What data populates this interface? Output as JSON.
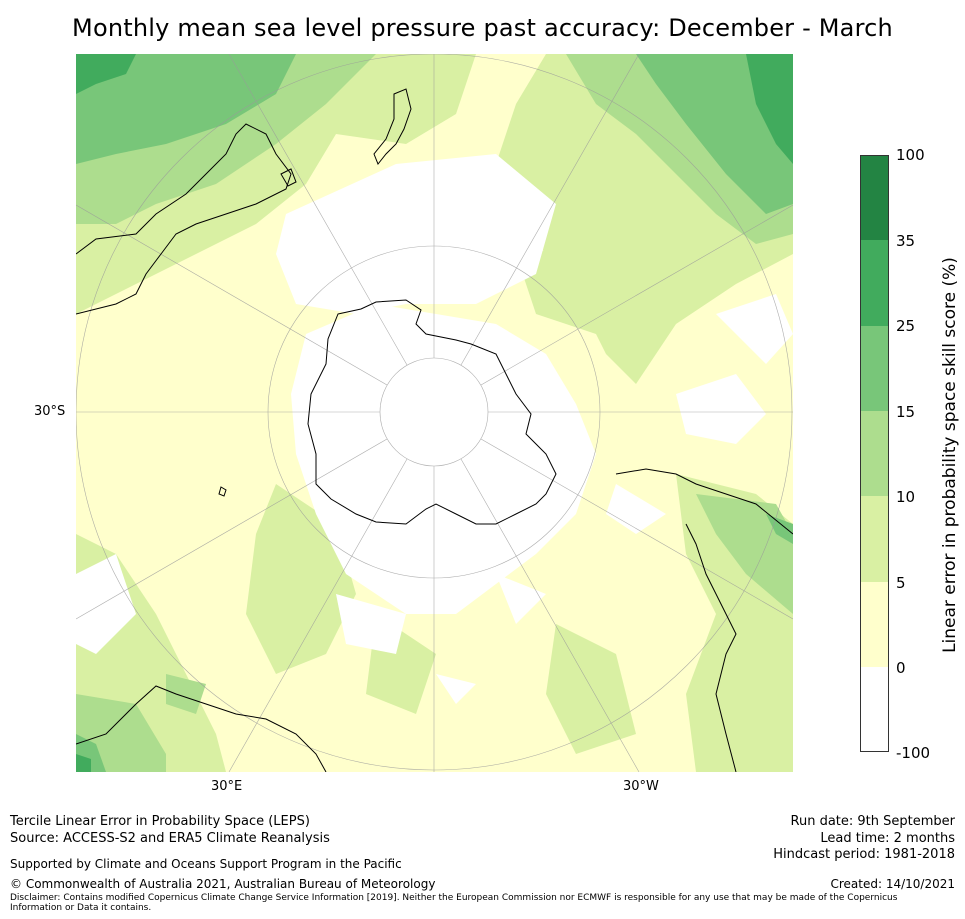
{
  "title": "Monthly mean sea level pressure past accuracy: December - March",
  "map": {
    "projection": "south-polar-stereographic",
    "lat_label": "30°S",
    "lon_labels": {
      "east": "30°E",
      "west": "30°W"
    },
    "colors": {
      "band_neg": "#ffffff",
      "band_0_5": "#ffffcc",
      "band_5_10": "#d9f0a3",
      "band_10_15": "#addd8e",
      "band_15_25": "#78c679",
      "band_25_35": "#41ab5d",
      "band_35_100": "#238443"
    }
  },
  "colorbar": {
    "title": "Linear error in probability space skill score (%)",
    "ticks": [
      "100",
      "35",
      "25",
      "15",
      "10",
      "5",
      "0",
      "-100"
    ],
    "bands_bottom_to_top": [
      {
        "range": "-100 to 0",
        "color": "#ffffff"
      },
      {
        "range": "0 to 5",
        "color": "#ffffcc"
      },
      {
        "range": "5 to 10",
        "color": "#d9f0a3"
      },
      {
        "range": "10 to 15",
        "color": "#addd8e"
      },
      {
        "range": "15 to 25",
        "color": "#78c679"
      },
      {
        "range": "25 to 35",
        "color": "#41ab5d"
      },
      {
        "range": "35 to 100",
        "color": "#238443"
      }
    ]
  },
  "footer": {
    "method": "Tercile Linear Error in Probability Space (LEPS)",
    "source": "Source: ACCESS-S2 and ERA5 Climate Reanalysis",
    "support": "Supported by Climate and Oceans Support Program in the Pacific",
    "copyright": "© Commonwealth of Australia 2021, Australian Bureau of Meteorology",
    "disclaimer": "Disclaimer: Contains modified Copernicus Climate Change Service Information [2019]. Neither the European Commission nor ECMWF is responsible for any use that may be made of the Copernicus Information or Data it contains.",
    "run_date": "Run date: 9th September",
    "lead_time": "Lead time: 2 months",
    "hindcast": "Hindcast period: 1981-2018",
    "created": "Created: 14/10/2021"
  }
}
